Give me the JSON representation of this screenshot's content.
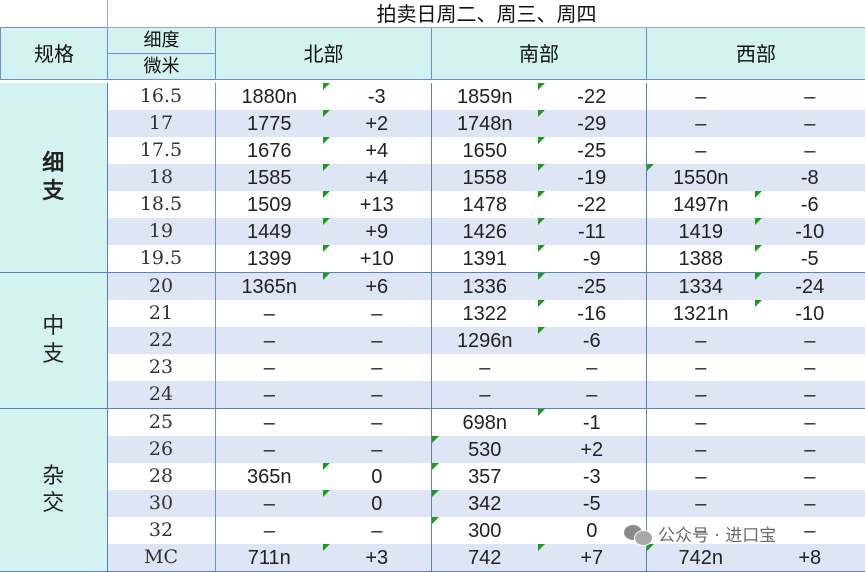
{
  "title": "拍卖日周二、周三、周四",
  "headers": {
    "spec": "规格",
    "fineness_top": "细度",
    "fineness_bottom": "微米",
    "north": "北部",
    "south": "南部",
    "west": "西部"
  },
  "groups": [
    {
      "label_line1": "细",
      "label_line2": "支"
    },
    {
      "label_line1": "中",
      "label_line2": "支"
    },
    {
      "label_line1": "杂",
      "label_line2": "交"
    }
  ],
  "rows": [
    {
      "size": "16.5",
      "n_val": "1880n",
      "n_chg": "-3",
      "s_val": "1859n",
      "s_chg": "-22",
      "w_val": "–",
      "w_chg": "–"
    },
    {
      "size": "17",
      "n_val": "1775",
      "n_chg": "+2",
      "s_val": "1748n",
      "s_chg": "-29",
      "w_val": "–",
      "w_chg": "–"
    },
    {
      "size": "17.5",
      "n_val": "1676",
      "n_chg": "+4",
      "s_val": "1650",
      "s_chg": "-25",
      "w_val": "–",
      "w_chg": "–"
    },
    {
      "size": "18",
      "n_val": "1585",
      "n_chg": "+4",
      "s_val": "1558",
      "s_chg": "-19",
      "w_val": "1550n",
      "w_chg": "-8"
    },
    {
      "size": "18.5",
      "n_val": "1509",
      "n_chg": "+13",
      "s_val": "1478",
      "s_chg": "-22",
      "w_val": "1497n",
      "w_chg": "-6"
    },
    {
      "size": "19",
      "n_val": "1449",
      "n_chg": "+9",
      "s_val": "1426",
      "s_chg": "-11",
      "w_val": "1419",
      "w_chg": "-10"
    },
    {
      "size": "19.5",
      "n_val": "1399",
      "n_chg": "+10",
      "s_val": "1391",
      "s_chg": "-9",
      "w_val": "1388",
      "w_chg": "-5"
    },
    {
      "size": "20",
      "n_val": "1365n",
      "n_chg": "+6",
      "s_val": "1336",
      "s_chg": "-25",
      "w_val": "1334",
      "w_chg": "-24"
    },
    {
      "size": "21",
      "n_val": "–",
      "n_chg": "–",
      "s_val": "1322",
      "s_chg": "-16",
      "w_val": "1321n",
      "w_chg": "-10"
    },
    {
      "size": "22",
      "n_val": "–",
      "n_chg": "–",
      "s_val": "1296n",
      "s_chg": "-6",
      "w_val": "–",
      "w_chg": "–"
    },
    {
      "size": "23",
      "n_val": "–",
      "n_chg": "–",
      "s_val": "–",
      "s_chg": "–",
      "w_val": "–",
      "w_chg": "–"
    },
    {
      "size": "24",
      "n_val": "–",
      "n_chg": "–",
      "s_val": "–",
      "s_chg": "–",
      "w_val": "–",
      "w_chg": "–"
    },
    {
      "size": "25",
      "n_val": "–",
      "n_chg": "–",
      "s_val": "698n",
      "s_chg": "-1",
      "w_val": "–",
      "w_chg": "–"
    },
    {
      "size": "26",
      "n_val": "–",
      "n_chg": "–",
      "s_val": "530",
      "s_chg": "+2",
      "w_val": "–",
      "w_chg": "–"
    },
    {
      "size": "28",
      "n_val": "365n",
      "n_chg": "0",
      "s_val": "357",
      "s_chg": "-3",
      "w_val": "–",
      "w_chg": "–"
    },
    {
      "size": "30",
      "n_val": "–",
      "n_chg": "0",
      "s_val": "342",
      "s_chg": "-5",
      "w_val": "–",
      "w_chg": "–"
    },
    {
      "size": "32",
      "n_val": "–",
      "n_chg": "–",
      "s_val": "300",
      "s_chg": "0",
      "w_val": "–",
      "w_chg": "–"
    },
    {
      "size": "MC",
      "n_val": "711n",
      "n_chg": "+3",
      "s_val": "742",
      "s_chg": "+7",
      "w_val": "742n",
      "w_chg": "+8"
    }
  ],
  "watermark": {
    "text": "公众号 · 进口宝",
    "icon": "wechat-icon"
  },
  "colors": {
    "header_bg": "#d3f2f0",
    "alt_row_bg": "#dee5f5",
    "border": "#5b7fc4",
    "comment_marker": "#1f9a1f"
  }
}
